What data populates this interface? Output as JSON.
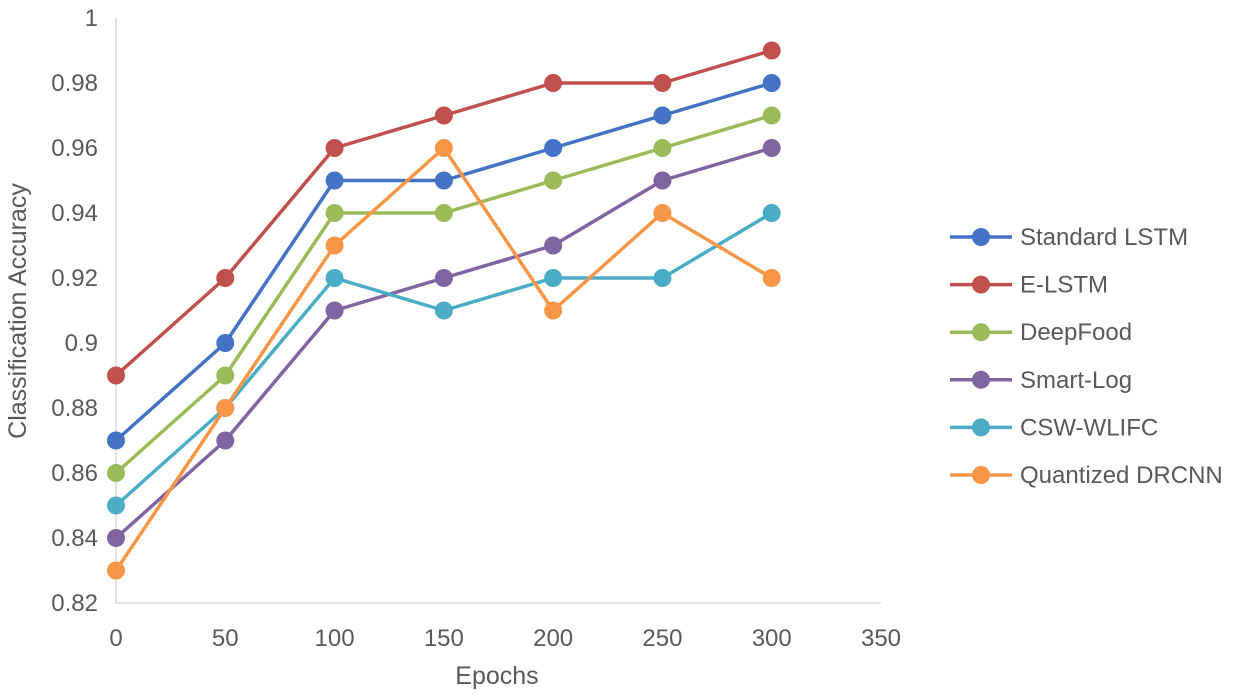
{
  "chart_data": {
    "type": "line",
    "xlabel": "Epochs",
    "ylabel": "Classification Accuracy",
    "xlim": [
      0,
      350
    ],
    "ylim": [
      0.82,
      1.0
    ],
    "x_ticks": [
      "0",
      "50",
      "100",
      "150",
      "200",
      "250",
      "300",
      "350"
    ],
    "y_ticks": [
      "0.82",
      "0.84",
      "0.86",
      "0.88",
      "0.9",
      "0.92",
      "0.94",
      "0.96",
      "0.98",
      "1"
    ],
    "grid": false,
    "legend_position": "right",
    "x": [
      0,
      50,
      100,
      150,
      200,
      250,
      300
    ],
    "series": [
      {
        "name": "Standard LSTM",
        "color": "#4472C4",
        "values": [
          0.87,
          0.9,
          0.95,
          0.95,
          0.96,
          0.97,
          0.98
        ]
      },
      {
        "name": "E-LSTM",
        "color": "#C0504D",
        "values": [
          0.89,
          0.92,
          0.96,
          0.97,
          0.98,
          0.98,
          0.99
        ]
      },
      {
        "name": "DeepFood",
        "color": "#9BBB59",
        "values": [
          0.86,
          0.89,
          0.94,
          0.94,
          0.95,
          0.96,
          0.97
        ]
      },
      {
        "name": "Smart-Log",
        "color": "#8064A2",
        "values": [
          0.84,
          0.87,
          0.91,
          0.92,
          0.93,
          0.95,
          0.96
        ]
      },
      {
        "name": "CSW-WLIFC",
        "color": "#4BACC6",
        "values": [
          0.85,
          0.88,
          0.92,
          0.91,
          0.92,
          0.92,
          0.94
        ]
      },
      {
        "name": "Quantized DRCNN",
        "color": "#F79646",
        "values": [
          0.83,
          0.88,
          0.93,
          0.96,
          0.91,
          0.94,
          0.92
        ]
      }
    ]
  }
}
